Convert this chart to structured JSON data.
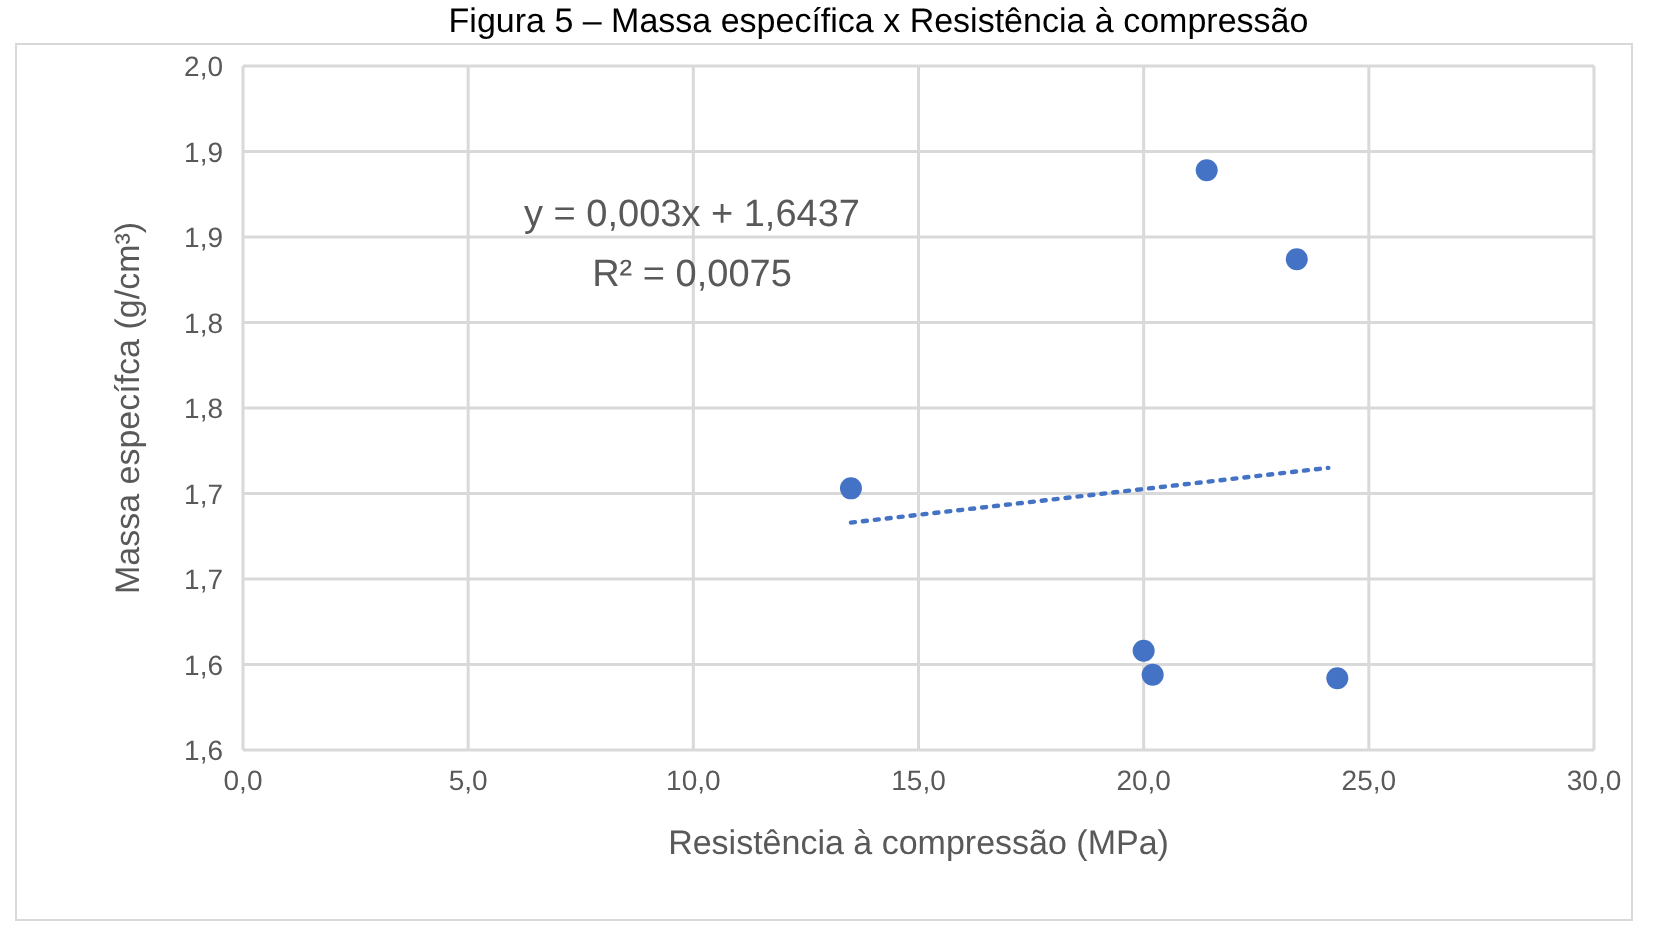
{
  "chart_data": {
    "type": "scatter",
    "title": "Figura 5 – Massa específica x Resistência à compressão",
    "xlabel": "Resistência à compressão (MPa)",
    "ylabel": "Massa específca (g/cm³)",
    "xlim": [
      0,
      30
    ],
    "ylim": [
      1.6,
      2.0
    ],
    "xticks": [
      {
        "value": 0,
        "label": "0,0"
      },
      {
        "value": 5,
        "label": "5,0"
      },
      {
        "value": 10,
        "label": "10,0"
      },
      {
        "value": 15,
        "label": "15,0"
      },
      {
        "value": 20,
        "label": "20,0"
      },
      {
        "value": 25,
        "label": "25,0"
      },
      {
        "value": 30,
        "label": "30,0"
      }
    ],
    "yticks": [
      {
        "value": 1.6,
        "label": "1,6"
      },
      {
        "value": 1.65,
        "label": "1,6"
      },
      {
        "value": 1.7,
        "label": "1,7"
      },
      {
        "value": 1.75,
        "label": "1,7"
      },
      {
        "value": 1.8,
        "label": "1,8"
      },
      {
        "value": 1.85,
        "label": "1,8"
      },
      {
        "value": 1.9,
        "label": "1,9"
      },
      {
        "value": 1.95,
        "label": "1,9"
      },
      {
        "value": 2.0,
        "label": "2,0"
      }
    ],
    "grid": true,
    "series": [
      {
        "type": "scatter",
        "color": "#4472c4",
        "marker": "circle",
        "x": [
          13.5,
          20.0,
          20.2,
          21.4,
          23.4,
          24.3
        ],
        "values": [
          1.753,
          1.658,
          1.644,
          1.939,
          1.887,
          1.642
        ]
      },
      {
        "type": "line",
        "color": "#4472c4",
        "marker": "none",
        "line_style": "dotted",
        "x": [
          13.5,
          24.1
        ],
        "values": [
          1.733,
          1.765
        ]
      }
    ],
    "annotations": [
      "y = 0,003x + 1,6437",
      "R² = 0,0075"
    ]
  }
}
